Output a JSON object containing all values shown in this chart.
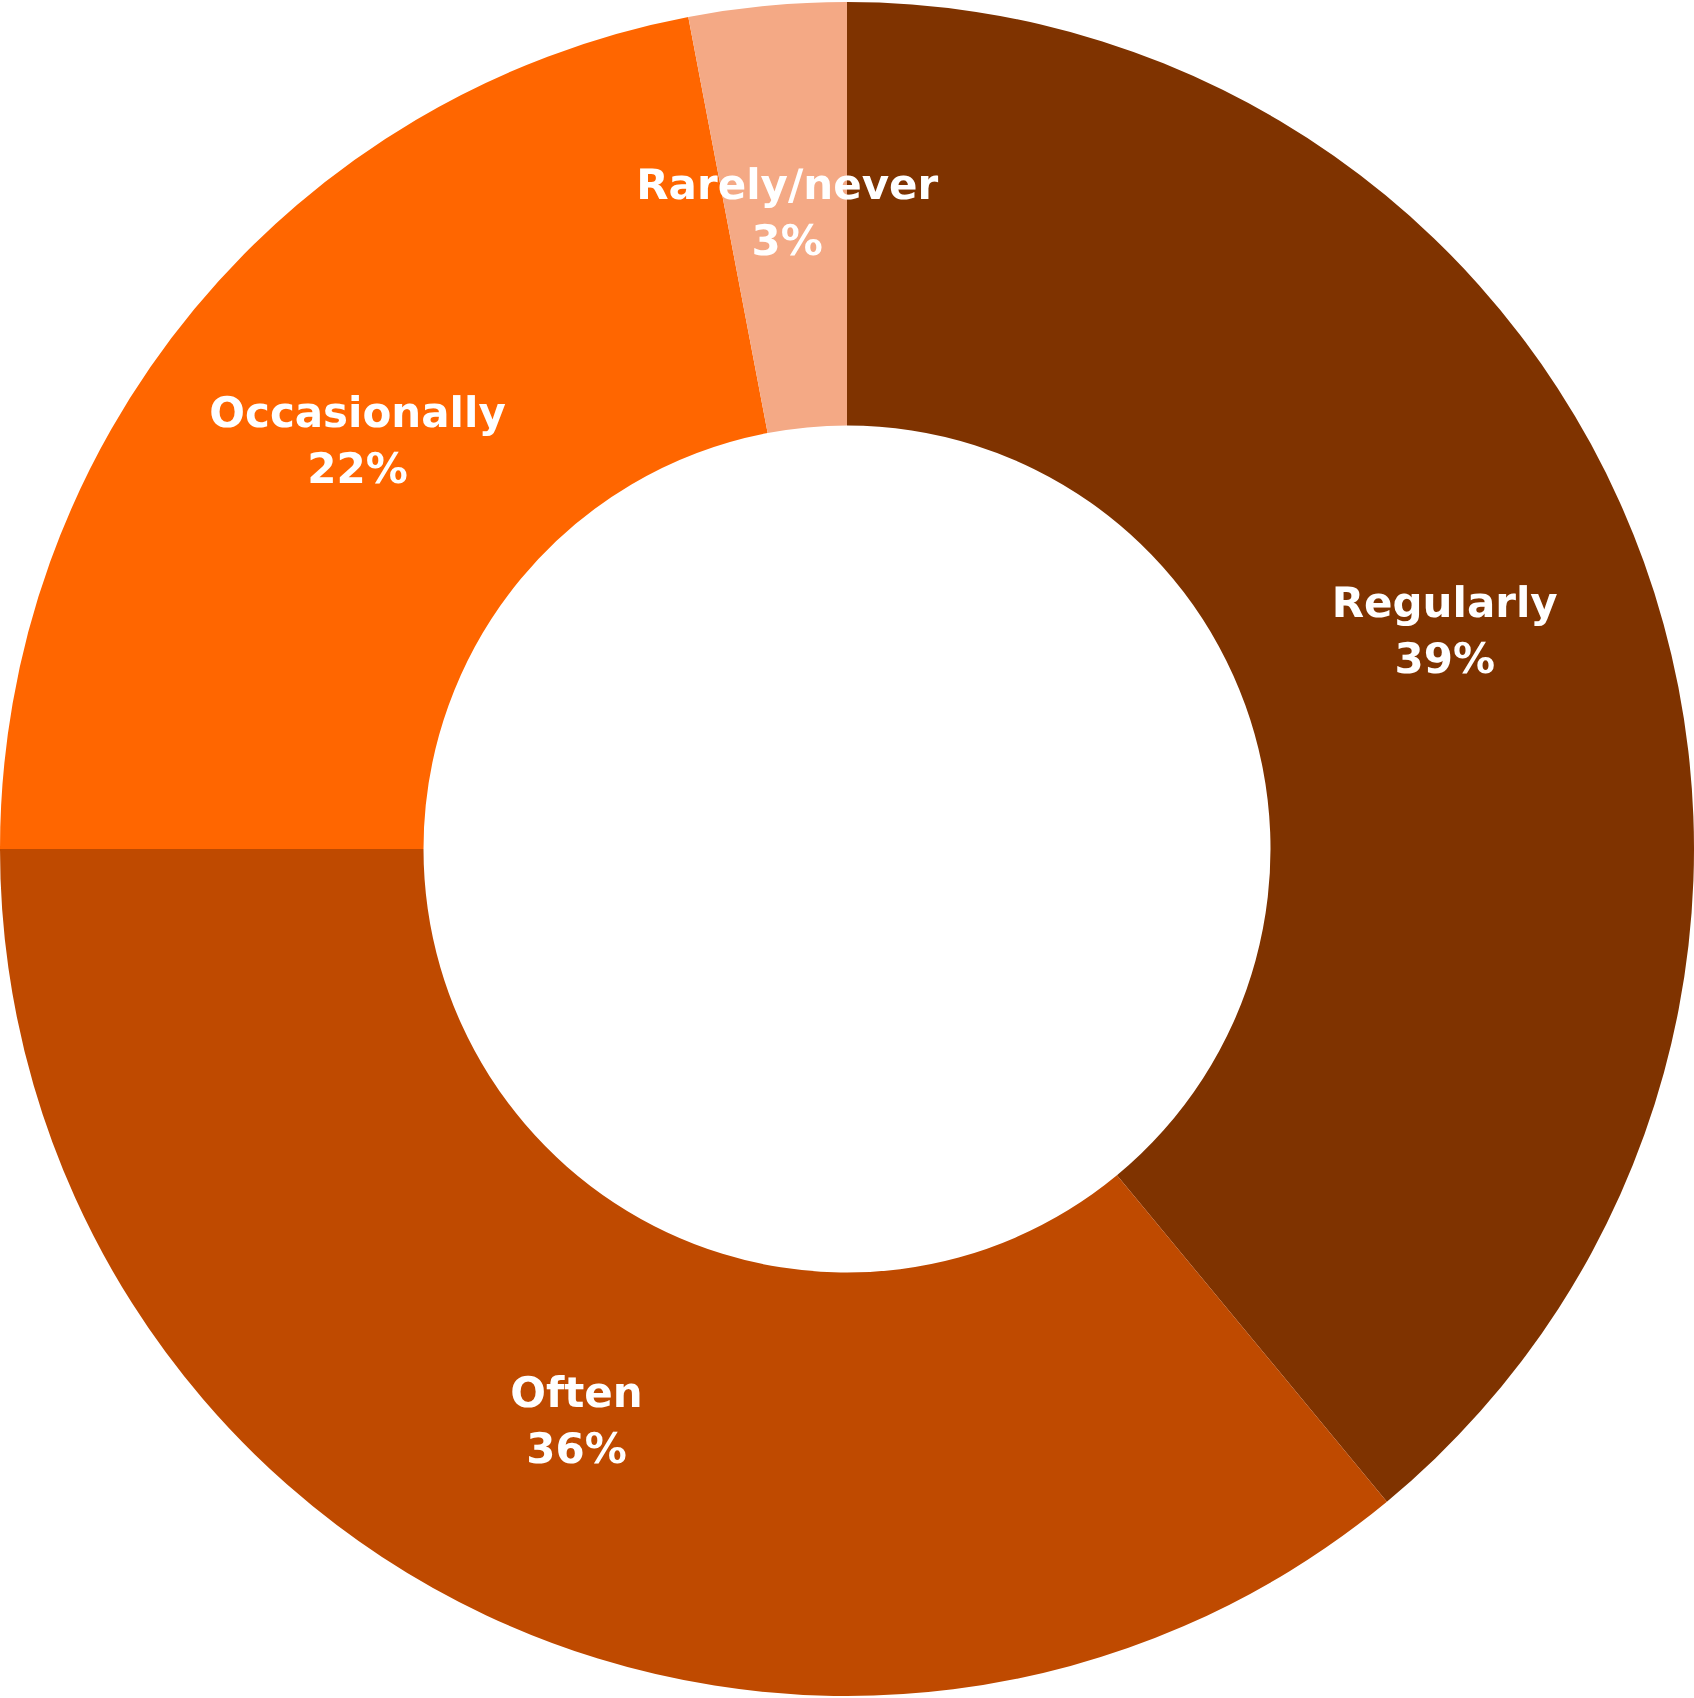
{
  "chart_data": {
    "type": "donut",
    "categories": [
      "Regularly",
      "Often",
      "Occasionally",
      "Rarely/never"
    ],
    "values": [
      39,
      36,
      22,
      3
    ],
    "colors": [
      "#7f3300",
      "#bf4a00",
      "#ff6600",
      "#f4a985"
    ],
    "value_labels": [
      "39%",
      "36%",
      "22%",
      "3%"
    ],
    "legend": false
  }
}
